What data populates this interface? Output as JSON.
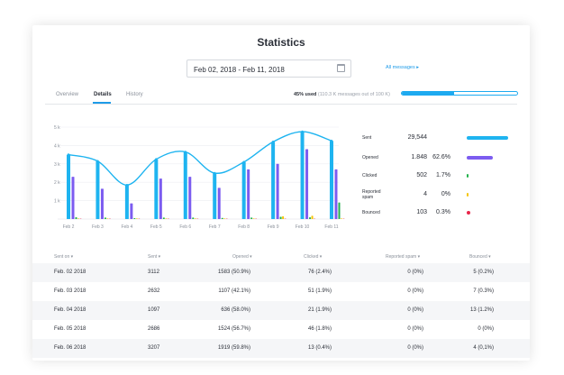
{
  "title": "Statistics",
  "date_range": "Feb 02, 2018 - Feb 11, 2018",
  "all_messages_link": "All messages ▸",
  "tabs": [
    "Overview",
    "Details",
    "History"
  ],
  "usage": {
    "used_label": "45% used",
    "detail": "(110.3 K messages out of 100 K)",
    "percent": 45,
    "color": "#1eaaf0"
  },
  "chart_data": {
    "type": "bar",
    "categories": [
      "Feb 2",
      "Feb 3",
      "Feb 4",
      "Feb 5",
      "Feb 6",
      "Feb 7",
      "Feb 8",
      "Feb 9",
      "Feb 10",
      "Feb 11"
    ],
    "y_ticks": [
      "5 k",
      "4 k",
      "3 k",
      "2 k",
      "1 k"
    ],
    "ylim": [
      0,
      5000
    ],
    "series": [
      {
        "color": "#1eb4f0",
        "values": [
          3500,
          3150,
          1850,
          3250,
          3650,
          2500,
          3100,
          4200,
          4750,
          4250
        ]
      },
      {
        "color": "#7c5cf0",
        "values": [
          2300,
          1650,
          850,
          2200,
          2300,
          1700,
          2700,
          3000,
          3800,
          2700
        ]
      },
      {
        "color": "#22b24c",
        "values": [
          100,
          80,
          50,
          80,
          80,
          60,
          80,
          120,
          90,
          900
        ]
      },
      {
        "color": "#f5c400",
        "values": [
          30,
          30,
          30,
          30,
          30,
          30,
          30,
          150,
          180,
          30
        ]
      },
      {
        "color": "#e8264a",
        "values": [
          20,
          20,
          20,
          20,
          20,
          20,
          20,
          20,
          20,
          20
        ]
      }
    ],
    "line": [
      3500,
      3150,
      1850,
      3250,
      3650,
      2500,
      3100,
      4200,
      4750,
      4250
    ]
  },
  "stats": [
    {
      "label": "Sent",
      "value": "29,544",
      "pct": "",
      "color": "#1eb4f0",
      "share": 1.0
    },
    {
      "label": "Opened",
      "value": "1.848",
      "pct": "62.6%",
      "color": "#7c5cf0",
      "share": 0.63
    },
    {
      "label": "Clicked",
      "value": "502",
      "pct": "1.7%",
      "color": "#22b24c",
      "share": 0.04
    },
    {
      "label": "Reported spam",
      "value": "4",
      "pct": "0%",
      "color": "#f5c400",
      "share": 0.02
    },
    {
      "label": "Bounced",
      "value": "103",
      "pct": "0.3%",
      "color": "#e8264a",
      "share": 0.08
    }
  ],
  "table": {
    "headers": [
      "Sent on ▾",
      "Sent ▾",
      "Opened ▾",
      "Clicked ▾",
      "Reported spam ▾",
      "Bounced ▾"
    ],
    "rows": [
      [
        "Feb. 02 2018",
        "3112",
        "1583 (50.9%)",
        "76 (2.4%)",
        "0 (0%)",
        "5 (0.2%)"
      ],
      [
        "Feb. 03 2018",
        "2632",
        "1107 (42.1%)",
        "51 (1.9%)",
        "0 (0%)",
        "7 (0.3%)"
      ],
      [
        "Feb. 04 2018",
        "1097",
        "636 (58.0%)",
        "21 (1.9%)",
        "0 (0%)",
        "13 (1.2%)"
      ],
      [
        "Feb. 05 2018",
        "2686",
        "1524 (56.7%)",
        "46 (1.8%)",
        "0 (0%)",
        "0 (0%)"
      ],
      [
        "Feb. 06 2018",
        "3207",
        "1919 (59.8%)",
        "13 (0.4%)",
        "0 (0%)",
        "4 (0,1%)"
      ]
    ]
  }
}
